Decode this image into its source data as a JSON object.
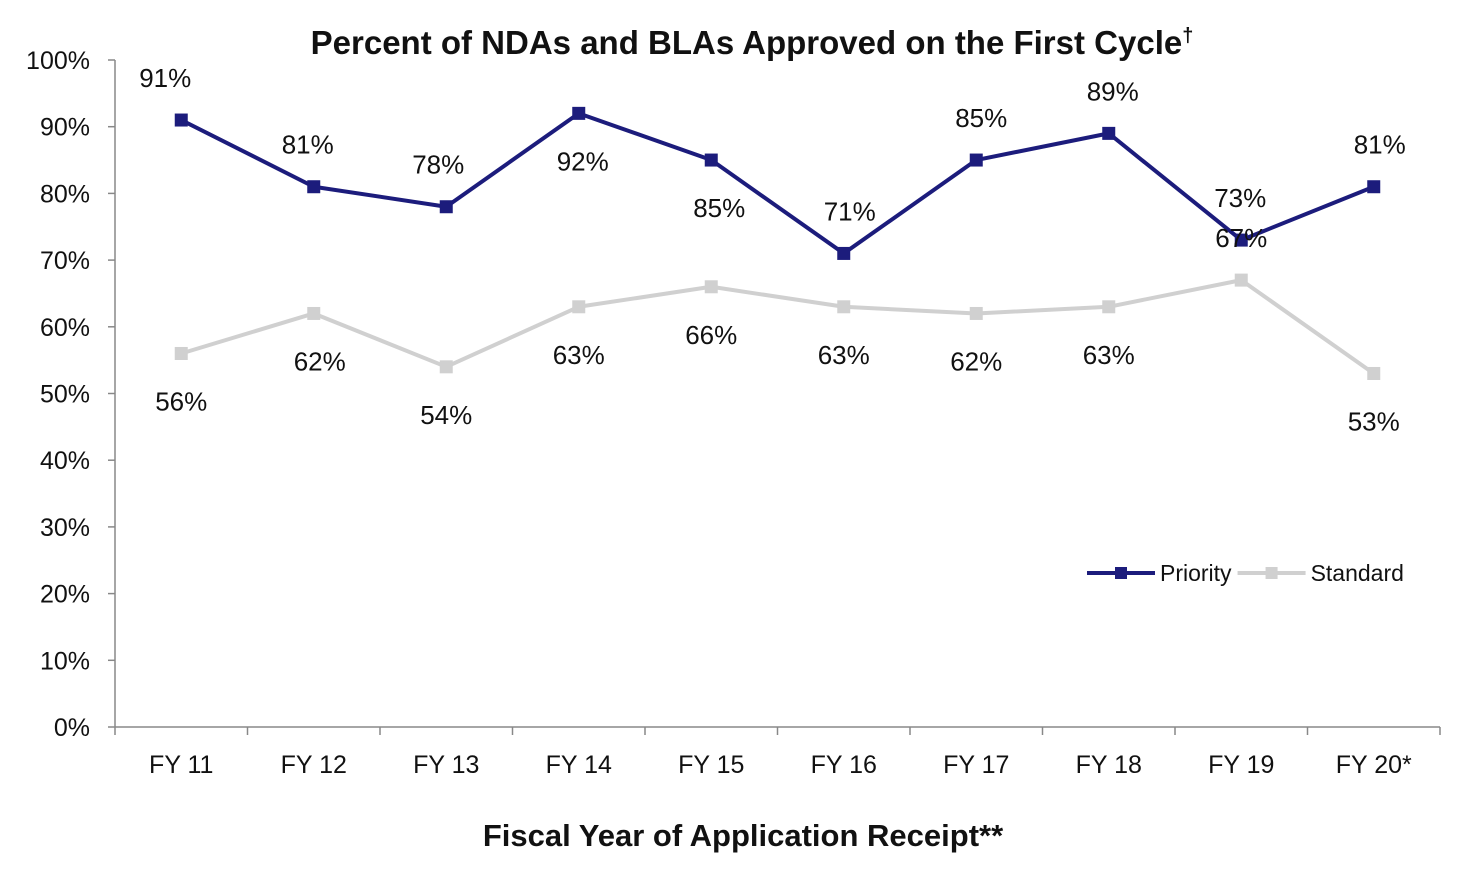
{
  "chart_data": {
    "type": "line",
    "title": "Percent of NDAs and BLAs Approved on the First Cycle",
    "title_mark": "†",
    "xlabel": "Fiscal Year of Application Receipt**",
    "ylabel": "",
    "categories": [
      "FY 11",
      "FY 12",
      "FY 13",
      "FY 14",
      "FY 15",
      "FY 16",
      "FY 17",
      "FY 18",
      "FY 19",
      "FY 20*"
    ],
    "ylim": [
      0,
      100
    ],
    "yticks": [
      0,
      10,
      20,
      30,
      40,
      50,
      60,
      70,
      80,
      90,
      100
    ],
    "ytick_labels": [
      "0%",
      "10%",
      "20%",
      "30%",
      "40%",
      "50%",
      "60%",
      "70%",
      "80%",
      "90%",
      "100%"
    ],
    "grid": false,
    "legend_placement": "right",
    "series": [
      {
        "name": "Priority",
        "color": "#1c1c7c",
        "marker": "square",
        "values": [
          91,
          81,
          78,
          92,
          85,
          71,
          85,
          89,
          73,
          81
        ],
        "labels": [
          "91%",
          "81%",
          "78%",
          "92%",
          "85%",
          "71%",
          "85%",
          "89%",
          "73%",
          "81%"
        ]
      },
      {
        "name": "Standard",
        "color": "#d0d0d0",
        "marker": "square",
        "values": [
          56,
          62,
          54,
          63,
          66,
          63,
          62,
          63,
          67,
          53
        ],
        "labels": [
          "56%",
          "62%",
          "54%",
          "63%",
          "66%",
          "63%",
          "62%",
          "63%",
          "67%",
          "53%"
        ]
      }
    ]
  }
}
